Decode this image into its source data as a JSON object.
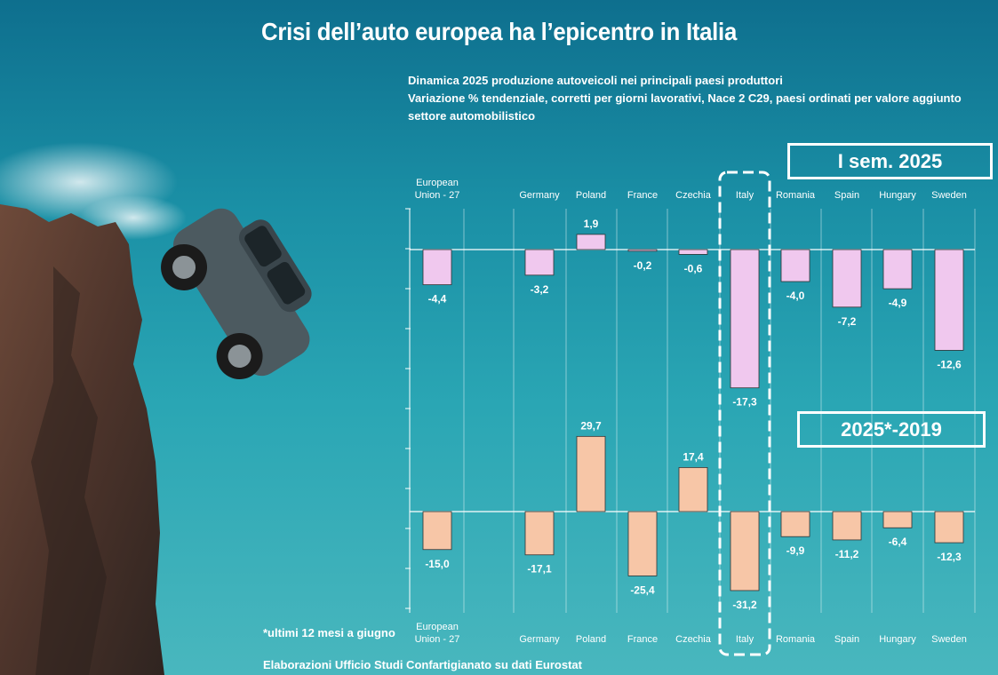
{
  "title": "Crisi dell’auto europea ha l’epicentro in Italia",
  "subtitle_lines": [
    "Dinamica 2025 produzione autoveicoli nei principali paesi produttori",
    "Variazione % tendenziale, corretti per giorni lavorativi, Nace 2 C29, paesi ordinati per valore aggiunto",
    "settore automobilistico"
  ],
  "footnote": "*ultimi 12 mesi a giugno",
  "source": "Elaborazioni Ufficio Studi Confartigianato su dati Eurostat",
  "colors": {
    "pink": "#f0c8ee",
    "peach": "#f7c6a7",
    "axis": "#ffffff"
  },
  "chart_data": [
    {
      "type": "bar",
      "title": "I sem. 2025",
      "categories": [
        "European Union - 27",
        "Germany",
        "Poland",
        "France",
        "Czechia",
        "Italy",
        "Romania",
        "Spain",
        "Hungary",
        "Sweden"
      ],
      "values": [
        -4.4,
        -3.2,
        1.9,
        -0.2,
        -0.6,
        -17.3,
        -4.0,
        -7.2,
        -4.9,
        -12.6
      ],
      "value_labels": [
        "-4,4",
        "-3,2",
        "1,9",
        "-0,2",
        "-0,6",
        "-17,3",
        "-4,0",
        "-7,2",
        "-4,9",
        "-12,6"
      ],
      "highlight": "Italy"
    },
    {
      "type": "bar",
      "title": "2025*-2019",
      "categories": [
        "European Union - 27",
        "Germany",
        "Poland",
        "France",
        "Czechia",
        "Italy",
        "Romania",
        "Spain",
        "Hungary",
        "Sweden"
      ],
      "values": [
        -15.0,
        -17.1,
        29.7,
        -25.4,
        17.4,
        -31.2,
        -9.9,
        -11.2,
        -6.4,
        -12.3
      ],
      "value_labels": [
        "-15,0",
        "-17,1",
        "29,7",
        "-25,4",
        "17,4",
        "-31,2",
        "-9,9",
        "-11,2",
        "-6,4",
        "-12,3"
      ],
      "highlight": "Italy"
    }
  ]
}
